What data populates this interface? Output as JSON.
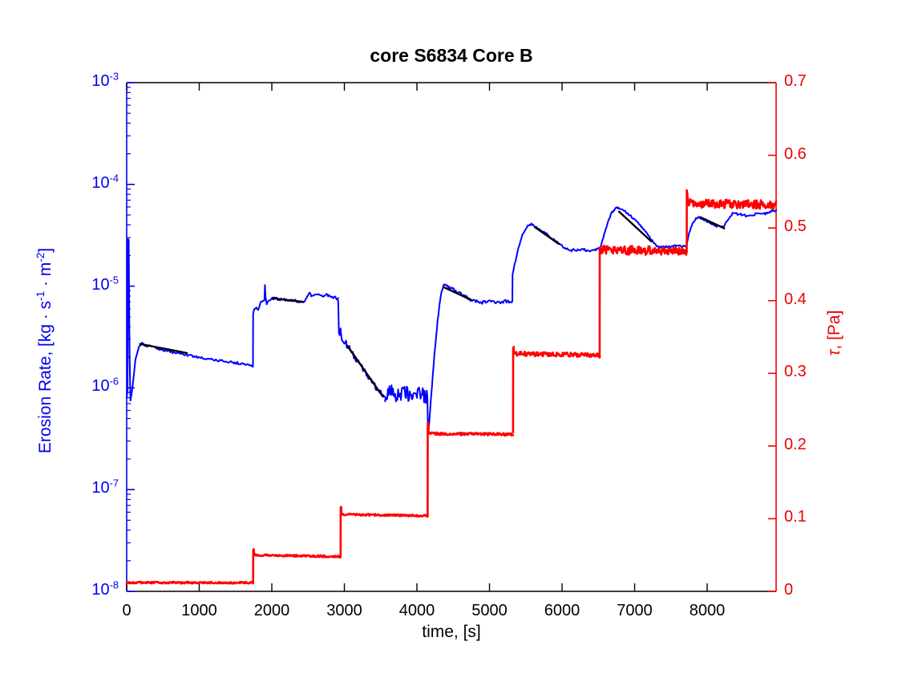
{
  "figure": {
    "background": "#FFFFFF"
  },
  "chart_data": {
    "type": "line",
    "title": "core S6834 Core B",
    "xlabel": "time, [s]",
    "x_range": [
      0,
      8950
    ],
    "x_ticks": [
      0,
      1000,
      2000,
      3000,
      4000,
      5000,
      6000,
      7000,
      8000
    ],
    "grid": false,
    "legend": "none",
    "left_axis": {
      "scale": "log",
      "color": "#0000EE",
      "range": [
        1e-08,
        0.001
      ],
      "tick_exponents": [
        -3,
        -4,
        -5,
        -6,
        -7,
        -8
      ],
      "label_parts": {
        "text": "Erosion Rate, [kg · s",
        "sup1": "-1",
        "mid": " · m",
        "sup2": "-2",
        "close": "]"
      }
    },
    "right_axis": {
      "scale": "linear",
      "color": "#EE0000",
      "range": [
        0,
        0.7
      ],
      "ticks": [
        0,
        0.1,
        0.2,
        0.3,
        0.4,
        0.5,
        0.6,
        0.7
      ],
      "label_tau": "τ",
      "label_rest": ", [Pa]"
    },
    "series": [
      {
        "name": "erosion-rate",
        "axis": "left",
        "color": "#0000FF",
        "line_width": 2,
        "noise_space": "log10",
        "segments": [
          {
            "noise": 0,
            "dt": 10,
            "pts": [
              [
                0,
                8e-07
              ],
              [
                12,
                9.5e-07
              ],
              [
                18,
                2.9e-05
              ],
              [
                28,
                2.85e-05
              ],
              [
                40,
                2.2e-06
              ],
              [
                52,
                7.5e-07
              ],
              [
                80,
                1e-06
              ],
              [
                120,
                1.9e-06
              ],
              [
                170,
                2.55e-06
              ],
              [
                210,
                2.7e-06
              ]
            ]
          },
          {
            "noise": 0.012,
            "dt": 15,
            "pts": [
              [
                210,
                2.7e-06
              ],
              [
                500,
                2.35e-06
              ],
              [
                900,
                2.05e-06
              ],
              [
                1300,
                1.85e-06
              ],
              [
                1600,
                1.72e-06
              ],
              [
                1740,
                1.65e-06
              ]
            ]
          },
          {
            "noise": 0.008,
            "dt": 12,
            "pts": [
              [
                1740,
                1.65e-06
              ],
              [
                1742,
                5.4e-06
              ],
              [
                1760,
                5.9e-06
              ],
              [
                1788,
                6.1e-06
              ],
              [
                1812,
                5.8e-06
              ],
              [
                1845,
                6.9e-06
              ],
              [
                1875,
                7.2e-06
              ],
              [
                1898,
                7.3e-06
              ],
              [
                1905,
                1.04e-05
              ],
              [
                1914,
                7.8e-06
              ],
              [
                1930,
                6.7e-06
              ],
              [
                1962,
                7.3e-06
              ],
              [
                2010,
                7.6e-06
              ]
            ]
          },
          {
            "noise": 0.013,
            "dt": 12,
            "pts": [
              [
                2010,
                7.6e-06
              ],
              [
                2150,
                7.4e-06
              ],
              [
                2300,
                7.2e-06
              ],
              [
                2430,
                7e-06
              ],
              [
                2465,
                7.4e-06
              ],
              [
                2510,
                8.6e-06
              ],
              [
                2555,
                7.9e-06
              ],
              [
                2615,
                8.3e-06
              ],
              [
                2675,
                7.9e-06
              ],
              [
                2740,
                8.2e-06
              ],
              [
                2810,
                7.9e-06
              ],
              [
                2870,
                7.7e-06
              ],
              [
                2915,
                7.5e-06
              ]
            ]
          },
          {
            "noise": 0.03,
            "dt": 12,
            "pts": [
              [
                2915,
                7.5e-06
              ],
              [
                2925,
                3.35e-06
              ],
              [
                2948,
                3.6e-06
              ],
              [
                2968,
                3.05e-06
              ],
              [
                3000,
                2.9e-06
              ],
              [
                3080,
                2.35e-06
              ],
              [
                3180,
                1.85e-06
              ],
              [
                3280,
                1.45e-06
              ],
              [
                3380,
                1.15e-06
              ],
              [
                3480,
                9.2e-07
              ],
              [
                3560,
                8.3e-07
              ]
            ]
          },
          {
            "noise": 0.075,
            "dt": 10,
            "pts": [
              [
                3560,
                8.3e-07
              ],
              [
                3650,
                9.2e-07
              ],
              [
                3760,
                8.3e-07
              ],
              [
                3870,
                8.8e-07
              ],
              [
                3980,
                8.3e-07
              ],
              [
                4060,
                8.8e-07
              ],
              [
                4145,
                8.2e-07
              ]
            ]
          },
          {
            "noise": 0.01,
            "dt": 10,
            "pts": [
              [
                4145,
                8.2e-07
              ],
              [
                4152,
                3.4e-07
              ],
              [
                4170,
                4.6e-07
              ],
              [
                4200,
                9e-07
              ],
              [
                4240,
                2.1e-06
              ],
              [
                4285,
                4.6e-06
              ],
              [
                4330,
                8.2e-06
              ],
              [
                4370,
                1.04e-05
              ],
              [
                4420,
                1e-05
              ]
            ]
          },
          {
            "noise": 0.015,
            "dt": 12,
            "pts": [
              [
                4420,
                1e-05
              ],
              [
                4520,
                9.1e-06
              ],
              [
                4620,
                8.2e-06
              ],
              [
                4720,
                7.5e-06
              ],
              [
                4800,
                7.1e-06
              ],
              [
                4900,
                6.9e-06
              ],
              [
                5000,
                7.2e-06
              ],
              [
                5100,
                6.9e-06
              ],
              [
                5200,
                7.1e-06
              ],
              [
                5315,
                7e-06
              ]
            ]
          },
          {
            "noise": 0.008,
            "dt": 10,
            "pts": [
              [
                5315,
                7e-06
              ],
              [
                5318,
                1.3e-05
              ],
              [
                5340,
                1.55e-05
              ],
              [
                5395,
                2.3e-05
              ],
              [
                5460,
                3.3e-05
              ],
              [
                5530,
                3.9e-05
              ],
              [
                5575,
                4.05e-05
              ]
            ]
          },
          {
            "noise": 0.01,
            "dt": 12,
            "pts": [
              [
                5575,
                4.05e-05
              ],
              [
                5660,
                3.75e-05
              ],
              [
                5760,
                3.35e-05
              ],
              [
                5860,
                2.95e-05
              ],
              [
                5960,
                2.6e-05
              ],
              [
                6050,
                2.35e-05
              ],
              [
                6130,
                2.25e-05
              ]
            ]
          },
          {
            "noise": 0.013,
            "dt": 12,
            "pts": [
              [
                6130,
                2.25e-05
              ],
              [
                6250,
                2.3e-05
              ],
              [
                6370,
                2.25e-05
              ],
              [
                6480,
                2.3e-05
              ],
              [
                6525,
                2.35e-05
              ]
            ]
          },
          {
            "noise": 0.008,
            "dt": 10,
            "pts": [
              [
                6525,
                2.35e-05
              ],
              [
                6560,
                2.9e-05
              ],
              [
                6620,
                4e-05
              ],
              [
                6680,
                5.2e-05
              ],
              [
                6740,
                5.85e-05
              ],
              [
                6775,
                5.9e-05
              ]
            ]
          },
          {
            "noise": 0.008,
            "dt": 12,
            "pts": [
              [
                6775,
                5.9e-05
              ],
              [
                6860,
                5.5e-05
              ],
              [
                6950,
                4.85e-05
              ],
              [
                7050,
                4.15e-05
              ],
              [
                7150,
                3.45e-05
              ],
              [
                7230,
                2.85e-05
              ],
              [
                7300,
                2.5e-05
              ],
              [
                7360,
                2.4e-05
              ]
            ]
          },
          {
            "noise": 0.011,
            "dt": 12,
            "pts": [
              [
                7360,
                2.4e-05
              ],
              [
                7460,
                2.45e-05
              ],
              [
                7560,
                2.5e-05
              ],
              [
                7660,
                2.45e-05
              ],
              [
                7715,
                2.5e-05
              ]
            ]
          },
          {
            "noise": 0.011,
            "dt": 12,
            "pts": [
              [
                7715,
                2.5e-05
              ],
              [
                7740,
                3.1e-05
              ],
              [
                7800,
                4.2e-05
              ],
              [
                7870,
                4.8e-05
              ],
              [
                7940,
                4.6e-05
              ],
              [
                8030,
                4.2e-05
              ],
              [
                8130,
                3.9e-05
              ],
              [
                8220,
                3.8e-05
              ],
              [
                8290,
                4.5e-05
              ],
              [
                8350,
                5.2e-05
              ],
              [
                8440,
                5.1e-05
              ],
              [
                8530,
                4.95e-05
              ],
              [
                8620,
                5e-05
              ],
              [
                8710,
                5.2e-05
              ],
              [
                8800,
                5.15e-05
              ],
              [
                8880,
                5.45e-05
              ],
              [
                8950,
                5.6e-05
              ]
            ]
          }
        ]
      },
      {
        "name": "fit-lines",
        "axis": "left",
        "color": "#000000",
        "line_width": 2.4,
        "noise_space": "log10",
        "segments": [
          {
            "noise": 0,
            "dt": 100,
            "pts": [
              [
                185,
                2.7e-06
              ],
              [
                830,
                2.2e-06
              ]
            ]
          },
          {
            "noise": 0,
            "dt": 100,
            "pts": [
              [
                2010,
                7.6e-06
              ],
              [
                2430,
                7e-06
              ]
            ]
          },
          {
            "noise": 0,
            "dt": 100,
            "pts": [
              [
                3040,
                2.6e-06
              ],
              [
                3530,
                8.2e-07
              ]
            ]
          },
          {
            "noise": 0,
            "dt": 100,
            "pts": [
              [
                4365,
                9.8e-06
              ],
              [
                4750,
                7.3e-06
              ]
            ]
          },
          {
            "noise": 0,
            "dt": 100,
            "pts": [
              [
                5625,
                3.8e-05
              ],
              [
                5955,
                2.6e-05
              ]
            ]
          },
          {
            "noise": 0,
            "dt": 100,
            "pts": [
              [
                6785,
                5.4e-05
              ],
              [
                7230,
                2.75e-05
              ]
            ]
          },
          {
            "noise": 0,
            "dt": 100,
            "pts": [
              [
                7910,
                4.75e-05
              ],
              [
                8235,
                3.7e-05
              ]
            ]
          }
        ]
      },
      {
        "name": "shear-stress-tau",
        "axis": "right",
        "color": "#FF0000",
        "line_width": 2.6,
        "noise_space": "linear",
        "segments": [
          {
            "noise": 0.0013,
            "dt": 8,
            "pts": [
              [
                0,
                0.012
              ],
              [
                1743,
                0.012
              ]
            ]
          },
          {
            "noise": 0.0013,
            "dt": 8,
            "pts": [
              [
                1743,
                0.012
              ],
              [
                1744,
                0.057
              ],
              [
                1752,
                0.057
              ],
              [
                1756,
                0.05
              ],
              [
                2948,
                0.048
              ]
            ]
          },
          {
            "noise": 0.0013,
            "dt": 8,
            "pts": [
              [
                2948,
                0.048
              ],
              [
                2949,
                0.115
              ],
              [
                2957,
                0.115
              ],
              [
                2961,
                0.106
              ],
              [
                4148,
                0.104
              ]
            ]
          },
          {
            "noise": 0.0018,
            "dt": 8,
            "pts": [
              [
                4148,
                0.104
              ],
              [
                4149,
                0.231
              ],
              [
                4157,
                0.231
              ],
              [
                4161,
                0.217
              ],
              [
                5325,
                0.216
              ]
            ]
          },
          {
            "noise": 0.0028,
            "dt": 8,
            "pts": [
              [
                5325,
                0.216
              ],
              [
                5326,
                0.336
              ],
              [
                5334,
                0.336
              ],
              [
                5338,
                0.327
              ],
              [
                6518,
                0.325
              ]
            ]
          },
          {
            "noise": 0.006,
            "dt": 8,
            "pts": [
              [
                6518,
                0.325
              ],
              [
                6519,
                0.47
              ],
              [
                7718,
                0.468
              ]
            ]
          },
          {
            "noise": 0.006,
            "dt": 8,
            "pts": [
              [
                7718,
                0.468
              ],
              [
                7719,
                0.546
              ],
              [
                7727,
                0.546
              ],
              [
                7731,
                0.534
              ],
              [
                8950,
                0.532
              ]
            ]
          }
        ]
      }
    ]
  }
}
